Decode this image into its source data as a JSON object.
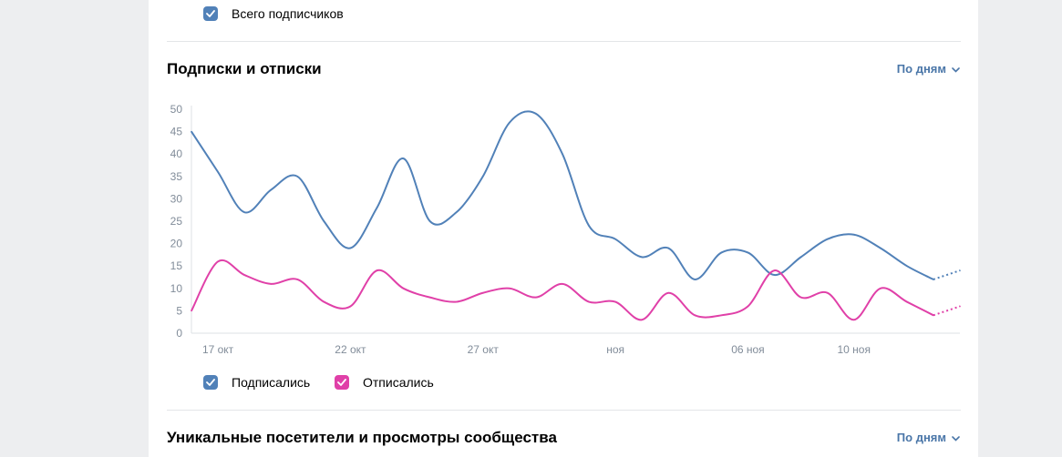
{
  "top_legend": {
    "label": "Всего подписчиков",
    "color": "#5181b8",
    "icon": "checkbox-checked-icon"
  },
  "section1": {
    "title": "Подписки и отписки",
    "dropdown_label": "По дням"
  },
  "section2": {
    "title": "Уникальные посетители и просмотры сообщества",
    "dropdown_label": "По дням"
  },
  "legend": [
    {
      "label": "Подписались",
      "color": "#5181b8",
      "icon": "checkbox-checked-icon"
    },
    {
      "label": "Отписались",
      "color": "#e040a8",
      "icon": "checkbox-checked-icon"
    }
  ],
  "chart_data": {
    "type": "line",
    "title": "Подписки и отписки",
    "x_tick_labels": [
      "17 окт",
      "22 окт",
      "27 окт",
      "ноя",
      "06 ноя",
      "10 ноя"
    ],
    "y_ticks": [
      0,
      5,
      10,
      15,
      20,
      25,
      30,
      35,
      40,
      45,
      50
    ],
    "ylim": [
      0,
      50
    ],
    "grid": false,
    "legend_position": "bottom-left",
    "series": [
      {
        "name": "Подписались",
        "color": "#5181b8",
        "values": [
          45,
          36,
          27,
          32,
          35,
          25,
          19,
          28,
          39,
          25,
          27,
          35,
          47,
          49,
          40,
          24,
          21,
          17,
          19,
          12,
          18,
          18,
          13,
          17,
          21,
          22,
          19,
          15,
          12,
          14
        ],
        "projected_last_point": true
      },
      {
        "name": "Отписались",
        "color": "#e040a8",
        "values": [
          5,
          16,
          13,
          11,
          12,
          7,
          6,
          14,
          10,
          8,
          7,
          9,
          10,
          8,
          11,
          7,
          7,
          3,
          9,
          4,
          4,
          6,
          14,
          8,
          9,
          3,
          10,
          7,
          4,
          6
        ],
        "projected_last_point": true
      }
    ]
  }
}
